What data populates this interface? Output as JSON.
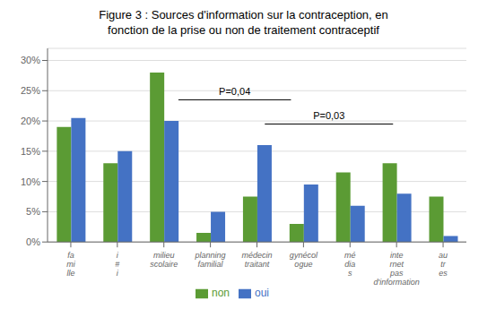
{
  "chart_data": {
    "type": "bar",
    "title": "Figure 3 : Sources d'information sur la contraception, en\nfonction de la prise ou non de traitement contraceptif",
    "categories": [
      "fa\nmi\nlle",
      "i\n#\ni",
      "milieu\nscolaire",
      "planning\nfamilial",
      "médecin\ntraitant",
      "gynécol\nogue",
      "mé\ndia\ns",
      "inte\nrnet\npas\nd'information",
      "au\ntr\nes"
    ],
    "series": [
      {
        "name": "non",
        "color": "#5B9B34",
        "values": [
          19,
          13,
          28,
          1.5,
          7.5,
          3,
          11.5,
          13,
          7.5
        ]
      },
      {
        "name": "oui",
        "color": "#4472C4",
        "values": [
          20.5,
          15,
          20,
          5,
          16,
          9.5,
          6,
          8,
          1
        ]
      }
    ],
    "ylim": [
      0,
      32
    ],
    "yticks": [
      {
        "value": 0,
        "label": "0%"
      },
      {
        "value": 5,
        "label": "5%"
      },
      {
        "value": 10,
        "label": "10%"
      },
      {
        "value": 15,
        "label": "15%"
      },
      {
        "value": 20,
        "label": "20%"
      },
      {
        "value": 25,
        "label": "25%"
      },
      {
        "value": 30,
        "label": "30%"
      }
    ],
    "grid": true,
    "legend": "bottom",
    "annotations": [
      "P=0,04",
      "P=0,03"
    ]
  }
}
